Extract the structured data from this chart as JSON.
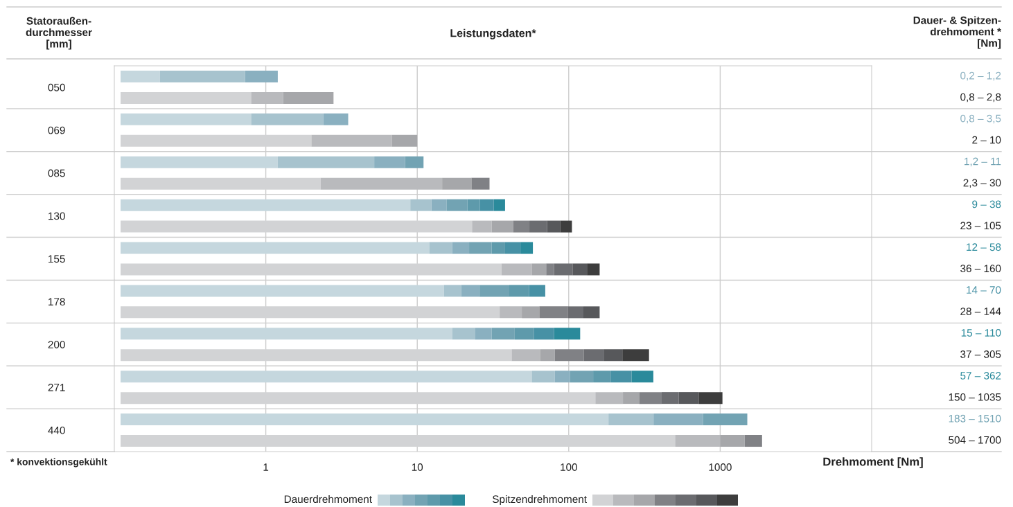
{
  "chart_data": {
    "type": "bar",
    "orientation": "horizontal",
    "title": "Leistungsdaten*",
    "ylabel": "Statoraußen-\ndurchmesser\n[mm]",
    "y2label": "Dauer- & Spitzen-\ndrehmoment *\n[Nm]",
    "xlabel": "Drehmoment [Nm]",
    "annotations": [
      "0,2 – 1,2",
      "0,8 – 2,8",
      "0,8 – 3,5",
      "2 – 10",
      "1,2 – 11",
      "2,3 – 30",
      "9 – 38",
      "23 – 105",
      "12 – 58",
      "36 – 160",
      "14 – 70",
      "28 – 144",
      "15 – 110",
      "37 – 305",
      "57 – 362",
      "150 – 1035",
      "183 – 1510",
      "504 – 1700",
      "* konvektionsgekühlt"
    ],
    "categories": [
      "050",
      null,
      "069",
      null,
      "085",
      null,
      "130",
      null,
      "155",
      null,
      "178",
      null,
      "200",
      null,
      "271",
      null,
      "440",
      null
    ],
    "xlim": [
      0.1,
      10000
    ],
    "xticks": [
      1,
      10,
      100,
      1000
    ],
    "log": "x",
    "grid": true,
    "legend": "bottom",
    "series": [
      {
        "name": "Dauerdrehmoment",
        "color": "#c5d7de",
        "base": [
          0.11,
          null,
          0.11,
          null,
          0.11,
          null,
          0.11,
          null,
          0.11,
          null,
          0.11,
          null,
          0.11,
          null,
          0.11,
          null,
          0.11,
          null
        ],
        "values": [
          0.09,
          null,
          0.69,
          null,
          1.09,
          null,
          8.89,
          null,
          11.89,
          null,
          14.89,
          null,
          16.89,
          null,
          56.89,
          null,
          182.89,
          null
        ]
      },
      {
        "color": "#a7c3ce",
        "base": [
          0.2,
          null,
          0.8,
          null,
          1.2,
          null,
          9,
          null,
          12,
          null,
          15,
          null,
          17,
          null,
          57,
          null,
          183,
          null
        ],
        "values": [
          0.53,
          null,
          1.6,
          null,
          4.0,
          null,
          3.4,
          null,
          5,
          null,
          4.5,
          null,
          7,
          null,
          24,
          null,
          180,
          null
        ]
      },
      {
        "color": "#8ab0c0",
        "base": [
          0.73,
          null,
          2.4,
          null,
          5.2,
          null,
          12.4,
          null,
          17,
          null,
          19.5,
          null,
          24,
          null,
          81,
          null,
          363,
          null
        ],
        "values": [
          0.47,
          null,
          1.1,
          null,
          3.1,
          null,
          3.2,
          null,
          5,
          null,
          6.3,
          null,
          7,
          null,
          21,
          null,
          407,
          null
        ]
      },
      {
        "color": "#72a3b3",
        "base": [
          null,
          null,
          null,
          null,
          8.3,
          null,
          15.6,
          null,
          22,
          null,
          25.8,
          null,
          31,
          null,
          102,
          null,
          770,
          null
        ],
        "values": [
          null,
          null,
          null,
          null,
          2.7,
          null,
          5.8,
          null,
          9,
          null,
          14.7,
          null,
          13,
          null,
          43,
          null,
          740,
          null
        ]
      },
      {
        "color": "#5e9aab",
        "base": [
          null,
          null,
          null,
          null,
          null,
          null,
          21.4,
          null,
          31,
          null,
          40.5,
          null,
          44,
          null,
          145,
          null,
          null,
          null
        ],
        "values": [
          null,
          null,
          null,
          null,
          null,
          null,
          4.5,
          null,
          7,
          null,
          14.2,
          null,
          15,
          null,
          44,
          null,
          null,
          null
        ]
      },
      {
        "color": "#4791a5",
        "base": [
          null,
          null,
          null,
          null,
          null,
          null,
          25.9,
          null,
          38,
          null,
          54.7,
          null,
          59,
          null,
          189,
          null,
          null,
          null
        ],
        "values": [
          null,
          null,
          null,
          null,
          null,
          null,
          6.1,
          null,
          10,
          null,
          15.3,
          null,
          21,
          null,
          71,
          null,
          null,
          null
        ]
      },
      {
        "color": "#2a8a9b",
        "base": [
          null,
          null,
          null,
          null,
          null,
          null,
          32,
          null,
          48,
          null,
          null,
          null,
          80,
          null,
          260,
          null,
          null,
          null
        ],
        "values": [
          null,
          null,
          null,
          null,
          null,
          null,
          6,
          null,
          10,
          null,
          null,
          null,
          39,
          null,
          102,
          null,
          null,
          null
        ]
      },
      {
        "name": "Spitzendrehmoment",
        "color": "#d2d3d5",
        "base": [
          null,
          0.11,
          null,
          0.11,
          null,
          0.11,
          null,
          0.11,
          null,
          0.11,
          null,
          0.11,
          null,
          0.11,
          null,
          0.11,
          null,
          0.11
        ],
        "values": [
          null,
          0.69,
          null,
          1.89,
          null,
          2.19,
          null,
          22.89,
          null,
          35.89,
          null,
          34.89,
          null,
          41.89,
          null,
          149.89,
          null,
          503.89
        ]
      },
      {
        "color": "#b9babd",
        "base": [
          null,
          0.8,
          null,
          2,
          null,
          2.3,
          null,
          23,
          null,
          36,
          null,
          35,
          null,
          42,
          null,
          150,
          null,
          504
        ],
        "values": [
          null,
          0.5,
          null,
          4.8,
          null,
          12.3,
          null,
          8,
          null,
          21,
          null,
          14,
          null,
          23,
          null,
          78,
          null,
          496
        ]
      },
      {
        "color": "#a6a7aa",
        "base": [
          null,
          1.3,
          null,
          6.8,
          null,
          14.6,
          null,
          31,
          null,
          57,
          null,
          49,
          null,
          65,
          null,
          228,
          null,
          1000
        ],
        "values": [
          null,
          1.5,
          null,
          3.2,
          null,
          8.2,
          null,
          12,
          null,
          14,
          null,
          15,
          null,
          16,
          null,
          64,
          null,
          450
        ]
      },
      {
        "color": "#808185",
        "base": [
          null,
          null,
          null,
          null,
          null,
          22.8,
          null,
          43,
          null,
          71,
          null,
          64,
          null,
          81,
          null,
          292,
          null,
          1450
        ],
        "values": [
          null,
          null,
          null,
          null,
          null,
          7.2,
          null,
          12,
          null,
          9,
          null,
          35,
          null,
          45,
          null,
          119,
          null,
          440
        ]
      },
      {
        "color": "#6b6c70",
        "base": [
          null,
          null,
          null,
          null,
          null,
          null,
          null,
          55,
          null,
          80,
          null,
          99,
          null,
          126,
          null,
          411,
          null,
          null
        ],
        "values": [
          null,
          null,
          null,
          null,
          null,
          null,
          null,
          17,
          null,
          26,
          null,
          26,
          null,
          44,
          null,
          122,
          null,
          null
        ]
      },
      {
        "color": "#57585b",
        "base": [
          null,
          null,
          null,
          null,
          null,
          null,
          null,
          72,
          null,
          106,
          null,
          125,
          null,
          170,
          null,
          533,
          null,
          null
        ],
        "values": [
          null,
          null,
          null,
          null,
          null,
          null,
          null,
          16,
          null,
          26,
          null,
          35,
          null,
          56,
          null,
          188,
          null,
          null
        ]
      },
      {
        "color": "#3d3d3d",
        "base": [
          null,
          null,
          null,
          null,
          null,
          null,
          null,
          88,
          null,
          132,
          null,
          null,
          null,
          226,
          null,
          721,
          null,
          null
        ],
        "values": [
          null,
          null,
          null,
          null,
          null,
          null,
          null,
          17,
          null,
          28,
          null,
          null,
          null,
          113,
          null,
          314,
          null,
          null
        ]
      }
    ]
  }
}
